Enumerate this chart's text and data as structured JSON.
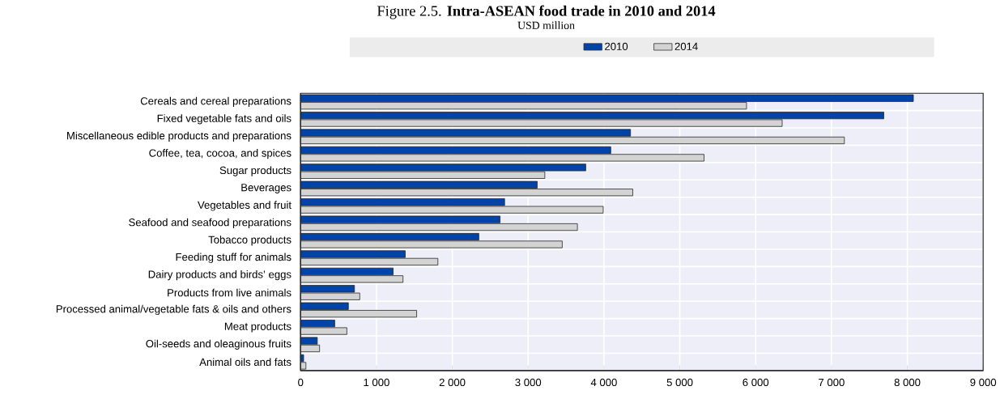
{
  "chart_data": {
    "type": "bar",
    "orientation": "horizontal",
    "title": "Figure 2.5. **Intra-ASEAN food trade in 2010 and 2014**",
    "subtitle": "USD million",
    "categories": [
      "Cereals and cereal preparations",
      "Fixed vegetable fats and oils",
      "Miscellaneous edible products and preparations",
      "Coffee, tea, cocoa, and spices",
      "Sugar products",
      "Beverages",
      "Vegetables and fruit",
      "Seafood and seafood preparations",
      "Tobacco products",
      "Feeding stuff for animals",
      "Dairy products and birds’ eggs",
      "Products from live animals",
      "Processed animal/vegetable fats & oils and others",
      "Meat products",
      "Oil-seeds and oleaginous fruits",
      "Animal oils and fats"
    ],
    "series": [
      {
        "name": "2010",
        "color": "#0044aa",
        "values": [
          8080,
          7690,
          4350,
          4090,
          3760,
          3120,
          2690,
          2630,
          2350,
          1380,
          1220,
          710,
          630,
          450,
          220,
          40
        ]
      },
      {
        "name": "2014",
        "color": "#d3d3d3",
        "values": [
          5880,
          6350,
          7170,
          5320,
          3220,
          4380,
          3990,
          3650,
          3450,
          1810,
          1350,
          780,
          1530,
          610,
          250,
          70
        ]
      }
    ],
    "xlim": [
      0,
      9000
    ],
    "xticks": [
      0,
      {
        "value": 1000,
        "label": "1 000"
      },
      {
        "value": 2000,
        "label": "2 000"
      },
      {
        "value": 3000,
        "label": "3 000"
      },
      {
        "value": 4000,
        "label": "4 000"
      },
      {
        "value": 5000,
        "label": "5 000"
      },
      {
        "value": 6000,
        "label": "6 000"
      },
      {
        "value": 7000,
        "label": "7 000"
      },
      {
        "value": 8000,
        "label": "8 000"
      },
      {
        "value": 9000,
        "label": "9 000"
      }
    ],
    "grid": true,
    "legend": "top"
  }
}
